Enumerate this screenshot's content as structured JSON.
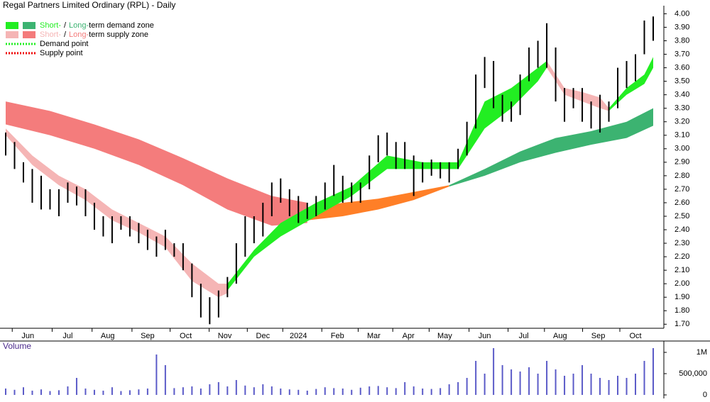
{
  "chart_data": {
    "type": "ohlc",
    "title": "Regal Partners Limited Ordinary (RPL) - Daily",
    "legend": [
      {
        "parts": [
          "Short-",
          "/",
          "Long-",
          "term demand zone"
        ],
        "colors": [
          "#22ee22",
          "#3cb371"
        ]
      },
      {
        "parts": [
          "Short-",
          "/",
          "Long-",
          "term supply zone"
        ],
        "colors": [
          "#f5b5b5",
          "#f47c7c"
        ]
      },
      {
        "parts": [
          "Demand point"
        ],
        "colors": [
          "#22ee22"
        ]
      },
      {
        "parts": [
          "Supply point"
        ],
        "colors": [
          "#ee0000"
        ]
      }
    ],
    "high": [
      3.12,
      3.05,
      2.9,
      2.85,
      2.8,
      2.7,
      2.7,
      2.75,
      2.72,
      2.7,
      2.6,
      2.5,
      2.5,
      2.5,
      2.5,
      2.45,
      2.4,
      2.35,
      2.4,
      2.3,
      2.3,
      2.15,
      2.0,
      1.9,
      1.95,
      2.05,
      2.3,
      2.5,
      2.5,
      2.6,
      2.75,
      2.78,
      2.7,
      2.65,
      2.6,
      2.65,
      2.75,
      2.88,
      2.8,
      2.75,
      2.75,
      2.95,
      3.1,
      3.12,
      3.05,
      3.05,
      2.95,
      2.9,
      2.92,
      2.9,
      2.9,
      3.0,
      3.2,
      3.55,
      3.68,
      3.65,
      3.4,
      3.35,
      3.55,
      3.75,
      3.8,
      3.93,
      3.75,
      3.45,
      3.45,
      3.45,
      3.35,
      3.4,
      3.35,
      3.6,
      3.65,
      3.7,
      3.95,
      3.98
    ],
    "low": [
      2.95,
      2.85,
      2.75,
      2.6,
      2.55,
      2.55,
      2.5,
      2.6,
      2.58,
      2.5,
      2.4,
      2.35,
      2.3,
      2.4,
      2.35,
      2.3,
      2.25,
      2.2,
      2.25,
      2.2,
      2.1,
      1.9,
      1.75,
      1.7,
      1.75,
      1.9,
      2.0,
      2.2,
      2.3,
      2.35,
      2.5,
      2.6,
      2.5,
      2.45,
      2.48,
      2.5,
      2.55,
      2.65,
      2.6,
      2.6,
      2.6,
      2.7,
      2.9,
      2.95,
      2.85,
      2.85,
      2.65,
      2.75,
      2.8,
      2.78,
      2.75,
      2.85,
      2.95,
      3.15,
      3.45,
      3.3,
      3.2,
      3.2,
      3.25,
      3.5,
      3.6,
      3.6,
      3.35,
      3.2,
      3.3,
      3.2,
      3.15,
      3.12,
      3.2,
      3.3,
      3.45,
      3.5,
      3.7,
      3.8
    ],
    "color": "#000000",
    "zones": [
      {
        "color": "#f47c7c",
        "x": [
          0,
          5,
          10,
          15,
          20,
          25,
          30,
          34
        ],
        "upper": [
          3.35,
          3.28,
          3.18,
          3.07,
          2.93,
          2.78,
          2.65,
          2.6
        ],
        "lower": [
          3.18,
          3.1,
          3.0,
          2.88,
          2.73,
          2.55,
          2.43,
          2.45
        ]
      },
      {
        "color": "#ff7f27",
        "x": [
          34,
          38,
          42,
          46,
          50
        ],
        "upper": [
          2.55,
          2.6,
          2.63,
          2.68,
          2.73
        ],
        "lower": [
          2.47,
          2.5,
          2.55,
          2.62,
          2.72
        ]
      },
      {
        "color": "#3cb371",
        "x": [
          50,
          54,
          58,
          62,
          66,
          70,
          73
        ],
        "upper": [
          2.73,
          2.85,
          2.98,
          3.08,
          3.13,
          3.2,
          3.3
        ],
        "lower": [
          2.72,
          2.8,
          2.9,
          2.97,
          3.03,
          3.08,
          3.17
        ]
      },
      {
        "color": "#f5b5b5",
        "x": [
          0,
          3,
          6,
          9,
          12,
          15,
          18,
          21,
          24,
          25
        ],
        "upper": [
          3.15,
          2.95,
          2.8,
          2.7,
          2.55,
          2.45,
          2.35,
          2.15,
          2.0,
          2.0
        ],
        "lower": [
          3.1,
          2.88,
          2.73,
          2.62,
          2.47,
          2.38,
          2.27,
          2.02,
          1.9,
          1.93
        ]
      },
      {
        "color": "#22ee22",
        "x": [
          25,
          28,
          31,
          35,
          39,
          43,
          47,
          51,
          54,
          57,
          60,
          61
        ],
        "upper": [
          2.0,
          2.25,
          2.45,
          2.6,
          2.72,
          2.95,
          2.9,
          2.9,
          3.35,
          3.45,
          3.6,
          3.65
        ],
        "lower": [
          1.95,
          2.2,
          2.35,
          2.5,
          2.65,
          2.85,
          2.85,
          2.85,
          3.15,
          3.3,
          3.5,
          3.6
        ]
      },
      {
        "color": "#f5b5b5",
        "x": [
          61,
          63,
          65,
          67,
          68
        ],
        "upper": [
          3.65,
          3.45,
          3.42,
          3.38,
          3.3
        ],
        "lower": [
          3.6,
          3.4,
          3.35,
          3.3,
          3.28
        ]
      },
      {
        "color": "#22ee22",
        "x": [
          68,
          70,
          72,
          73
        ],
        "upper": [
          3.3,
          3.45,
          3.55,
          3.68
        ],
        "lower": [
          3.28,
          3.4,
          3.48,
          3.6
        ]
      }
    ],
    "xlim": [
      -0.64,
      74.2
    ],
    "xticks": [
      {
        "value": 2.5,
        "label": "Jun"
      },
      {
        "value": 7,
        "label": "Jul"
      },
      {
        "value": 11.5,
        "label": "Aug"
      },
      {
        "value": 16,
        "label": "Sep"
      },
      {
        "value": 20.3,
        "label": "Oct"
      },
      {
        "value": 24.7,
        "label": "Nov"
      },
      {
        "value": 29,
        "label": "Dec"
      },
      {
        "value": 33,
        "label": "2024"
      },
      {
        "value": 37.4,
        "label": "Feb"
      },
      {
        "value": 41.5,
        "label": "Mar"
      },
      {
        "value": 45.4,
        "label": "Apr"
      },
      {
        "value": 49.5,
        "label": "May"
      },
      {
        "value": 54,
        "label": "Jun"
      },
      {
        "value": 58.4,
        "label": "Jul"
      },
      {
        "value": 62.5,
        "label": "Aug"
      },
      {
        "value": 66.8,
        "label": "Sep"
      },
      {
        "value": 71,
        "label": "Oct"
      }
    ],
    "ylim": [
      1.67,
      4.06
    ],
    "yticks": [
      {
        "value": 1.7,
        "label": "1.70"
      },
      {
        "value": 1.8,
        "label": "1.80"
      },
      {
        "value": 1.9,
        "label": "1.90"
      },
      {
        "value": 2.0,
        "label": "2.00"
      },
      {
        "value": 2.1,
        "label": "2.10"
      },
      {
        "value": 2.2,
        "label": "2.20"
      },
      {
        "value": 2.3,
        "label": "2.30"
      },
      {
        "value": 2.4,
        "label": "2.40"
      },
      {
        "value": 2.5,
        "label": "2.50"
      },
      {
        "value": 2.6,
        "label": "2.60"
      },
      {
        "value": 2.7,
        "label": "2.70"
      },
      {
        "value": 2.8,
        "label": "2.80"
      },
      {
        "value": 2.9,
        "label": "2.90"
      },
      {
        "value": 3.0,
        "label": "3.00"
      },
      {
        "value": 3.1,
        "label": "3.10"
      },
      {
        "value": 3.2,
        "label": "3.20"
      },
      {
        "value": 3.3,
        "label": "3.30"
      },
      {
        "value": 3.4,
        "label": "3.40"
      },
      {
        "value": 3.5,
        "label": "3.50"
      },
      {
        "value": 3.6,
        "label": "3.60"
      },
      {
        "value": 3.7,
        "label": "3.70"
      },
      {
        "value": 3.8,
        "label": "3.80"
      },
      {
        "value": 3.9,
        "label": "3.90"
      },
      {
        "value": 4.0,
        "label": "4.00"
      }
    ],
    "volume_title": "Volume",
    "volume_color": "#5b5bc8",
    "volume": [
      150000,
      120000,
      180000,
      100000,
      130000,
      90000,
      110000,
      200000,
      400000,
      150000,
      120000,
      100000,
      180000,
      90000,
      110000,
      130000,
      150000,
      950000,
      700000,
      160000,
      180000,
      200000,
      150000,
      250000,
      300000,
      200000,
      350000,
      220000,
      180000,
      250000,
      200000,
      150000,
      130000,
      120000,
      100000,
      140000,
      180000,
      160000,
      150000,
      120000,
      170000,
      200000,
      210000,
      180000,
      160000,
      300000,
      200000,
      150000,
      140000,
      160000,
      250000,
      300000,
      400000,
      800000,
      500000,
      1100000,
      700000,
      600000,
      550000,
      650000,
      500000,
      800000,
      600000,
      450000,
      500000,
      700000,
      500000,
      400000,
      350000,
      450000,
      400000,
      500000,
      800000,
      1100000
    ],
    "vlim": [
      0,
      1100000
    ],
    "vticks": [
      0,
      {
        "value": 500000,
        "label": "500,000"
      },
      {
        "value": 1000000,
        "label": "1M"
      }
    ]
  }
}
